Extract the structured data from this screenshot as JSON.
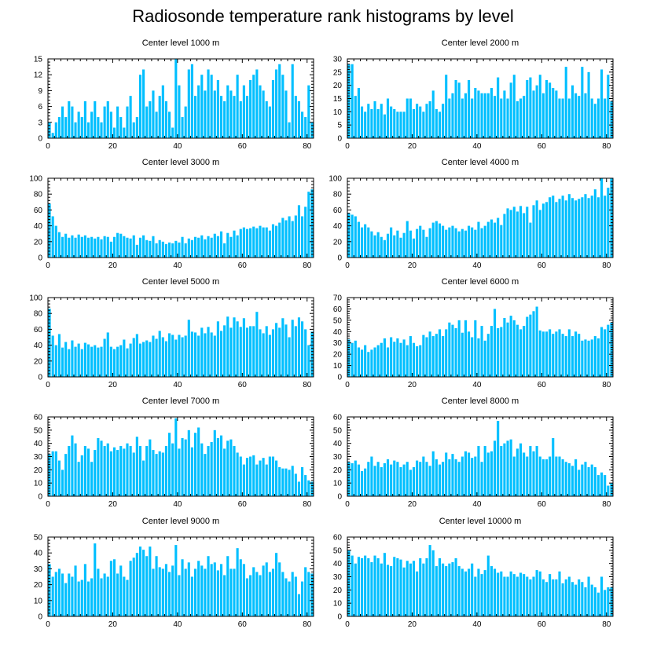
{
  "title": "Radiosonde temperature rank histograms by level",
  "colors": {
    "bar": "#00BFFF",
    "axis": "#000000",
    "background": "#FFFFFF"
  },
  "chart_data": [
    {
      "type": "bar",
      "title": "Center level 1000 m",
      "xlim": [
        0,
        82
      ],
      "ylim": [
        0,
        15
      ],
      "xticks": [
        0,
        20,
        40,
        60,
        80
      ],
      "yticks": [
        0,
        3,
        6,
        9,
        12,
        15
      ],
      "values": [
        3,
        1,
        3,
        4,
        6,
        4,
        7,
        6,
        3,
        5,
        4,
        7,
        3,
        5,
        7,
        4,
        3,
        6,
        7,
        5,
        2,
        6,
        4,
        2,
        6,
        8,
        3,
        4,
        12,
        13,
        6,
        7,
        9,
        5,
        8,
        10,
        7,
        5,
        2,
        15,
        10,
        4,
        6,
        13,
        14,
        8,
        10,
        12,
        9,
        13,
        12,
        9,
        11,
        8,
        7,
        10,
        9,
        8,
        12,
        7,
        10,
        8,
        11,
        12,
        13,
        10,
        9,
        7,
        6,
        11,
        13,
        14,
        12,
        9,
        3,
        14,
        8,
        7,
        5,
        4,
        10,
        3
      ]
    },
    {
      "type": "bar",
      "title": "Center level 2000 m",
      "xlim": [
        0,
        82
      ],
      "ylim": [
        0,
        30
      ],
      "xticks": [
        0,
        20,
        40,
        60,
        80
      ],
      "yticks": [
        0,
        5,
        10,
        15,
        20,
        25,
        30
      ],
      "values": [
        28,
        28,
        16,
        19,
        12,
        10,
        13,
        11,
        14,
        11,
        13,
        9,
        15,
        12,
        11,
        10,
        10,
        10,
        15,
        15,
        11,
        13,
        12,
        10,
        13,
        14,
        18,
        11,
        10,
        13,
        24,
        15,
        17,
        22,
        21,
        15,
        17,
        22,
        15,
        19,
        18,
        17,
        17,
        17,
        19,
        16,
        23,
        15,
        18,
        15,
        21,
        24,
        14,
        15,
        16,
        22,
        23,
        18,
        20,
        24,
        17,
        22,
        21,
        19,
        18,
        15,
        15,
        27,
        15,
        20,
        17,
        16,
        27,
        17,
        25,
        15,
        13,
        15,
        26,
        15,
        24,
        14
      ]
    },
    {
      "type": "bar",
      "title": "Center level 3000 m",
      "xlim": [
        0,
        82
      ],
      "ylim": [
        0,
        100
      ],
      "xticks": [
        0,
        20,
        40,
        60,
        80
      ],
      "yticks": [
        0,
        20,
        40,
        60,
        80,
        100
      ],
      "values": [
        68,
        52,
        40,
        32,
        26,
        30,
        25,
        28,
        25,
        29,
        26,
        28,
        25,
        26,
        24,
        26,
        23,
        27,
        26,
        20,
        26,
        31,
        30,
        27,
        25,
        24,
        28,
        16,
        25,
        28,
        22,
        21,
        27,
        18,
        22,
        20,
        17,
        19,
        18,
        21,
        19,
        26,
        18,
        24,
        22,
        26,
        25,
        28,
        23,
        27,
        25,
        30,
        27,
        33,
        18,
        31,
        26,
        34,
        28,
        36,
        38,
        36,
        37,
        39,
        37,
        40,
        38,
        38,
        34,
        42,
        40,
        44,
        50,
        47,
        52,
        46,
        53,
        66,
        52,
        64,
        83,
        86
      ]
    },
    {
      "type": "bar",
      "title": "Center level 4000 m",
      "xlim": [
        0,
        82
      ],
      "ylim": [
        0,
        100
      ],
      "xticks": [
        0,
        20,
        40,
        60,
        80
      ],
      "yticks": [
        0,
        20,
        40,
        60,
        80,
        100
      ],
      "values": [
        56,
        54,
        52,
        45,
        38,
        42,
        38,
        33,
        28,
        32,
        26,
        22,
        30,
        38,
        28,
        34,
        25,
        31,
        46,
        34,
        24,
        36,
        40,
        35,
        26,
        37,
        44,
        46,
        43,
        40,
        35,
        38,
        40,
        37,
        33,
        36,
        34,
        40,
        38,
        35,
        45,
        37,
        40,
        45,
        48,
        44,
        50,
        41,
        55,
        62,
        60,
        64,
        58,
        65,
        56,
        64,
        44,
        66,
        72,
        60,
        68,
        70,
        76,
        78,
        70,
        74,
        78,
        72,
        80,
        75,
        72,
        74,
        76,
        80,
        75,
        78,
        86,
        76,
        100,
        78,
        88,
        100
      ]
    },
    {
      "type": "bar",
      "title": "Center level 5000 m",
      "xlim": [
        0,
        82
      ],
      "ylim": [
        0,
        100
      ],
      "xticks": [
        0,
        20,
        40,
        60,
        80
      ],
      "yticks": [
        0,
        20,
        40,
        60,
        80,
        100
      ],
      "values": [
        86,
        52,
        40,
        54,
        37,
        44,
        35,
        46,
        38,
        42,
        35,
        43,
        41,
        38,
        40,
        37,
        38,
        48,
        56,
        38,
        35,
        38,
        40,
        47,
        36,
        42,
        49,
        54,
        42,
        44,
        46,
        44,
        52,
        48,
        58,
        50,
        45,
        55,
        53,
        47,
        53,
        50,
        52,
        72,
        57,
        56,
        52,
        62,
        55,
        63,
        56,
        52,
        70,
        58,
        65,
        76,
        62,
        75,
        70,
        63,
        74,
        62,
        64,
        64,
        82,
        60,
        55,
        64,
        53,
        60,
        68,
        62,
        74,
        66,
        50,
        72,
        64,
        75,
        70,
        60,
        40,
        57
      ]
    },
    {
      "type": "bar",
      "title": "Center level 6000 m",
      "xlim": [
        0,
        82
      ],
      "ylim": [
        0,
        70
      ],
      "xticks": [
        0,
        20,
        40,
        60,
        80
      ],
      "yticks": [
        0,
        10,
        20,
        30,
        40,
        50,
        60,
        70
      ],
      "values": [
        33,
        30,
        32,
        26,
        24,
        28,
        22,
        24,
        26,
        28,
        30,
        34,
        26,
        35,
        31,
        34,
        30,
        33,
        28,
        36,
        30,
        27,
        28,
        37,
        35,
        40,
        36,
        38,
        42,
        36,
        42,
        48,
        46,
        43,
        50,
        39,
        50,
        40,
        35,
        50,
        34,
        45,
        32,
        38,
        45,
        60,
        43,
        44,
        52,
        48,
        54,
        50,
        46,
        42,
        45,
        53,
        55,
        58,
        62,
        41,
        40,
        40,
        42,
        38,
        40,
        42,
        38,
        36,
        42,
        36,
        40,
        38,
        32,
        33,
        32,
        33,
        36,
        34,
        44,
        42,
        46,
        48
      ]
    },
    {
      "type": "bar",
      "title": "Center level 7000 m",
      "xlim": [
        0,
        82
      ],
      "ylim": [
        0,
        60
      ],
      "xticks": [
        0,
        20,
        40,
        60,
        80
      ],
      "yticks": [
        0,
        10,
        20,
        30,
        40,
        50,
        60
      ],
      "values": [
        32,
        34,
        34,
        27,
        20,
        32,
        38,
        46,
        40,
        26,
        31,
        38,
        36,
        26,
        35,
        44,
        42,
        38,
        40,
        34,
        37,
        35,
        38,
        36,
        40,
        38,
        33,
        45,
        38,
        27,
        38,
        43,
        35,
        32,
        34,
        33,
        38,
        48,
        40,
        59,
        36,
        44,
        43,
        50,
        37,
        48,
        52,
        40,
        32,
        38,
        41,
        50,
        44,
        46,
        36,
        42,
        43,
        38,
        33,
        30,
        24,
        29,
        30,
        31,
        24,
        27,
        29,
        24,
        30,
        30,
        27,
        22,
        21,
        21,
        20,
        23,
        17,
        11,
        22,
        16,
        12,
        11
      ]
    },
    {
      "type": "bar",
      "title": "Center level 8000 m",
      "xlim": [
        0,
        82
      ],
      "ylim": [
        0,
        60
      ],
      "xticks": [
        0,
        20,
        40,
        60,
        80
      ],
      "yticks": [
        0,
        10,
        20,
        30,
        40,
        50,
        60
      ],
      "values": [
        26,
        25,
        27,
        24,
        19,
        21,
        26,
        30,
        23,
        26,
        22,
        25,
        28,
        24,
        27,
        26,
        22,
        24,
        26,
        20,
        22,
        27,
        26,
        30,
        26,
        23,
        34,
        28,
        24,
        26,
        33,
        28,
        32,
        28,
        26,
        30,
        34,
        33,
        29,
        30,
        38,
        26,
        38,
        33,
        34,
        42,
        57,
        38,
        40,
        42,
        43,
        30,
        36,
        40,
        33,
        30,
        38,
        34,
        38,
        30,
        28,
        28,
        30,
        44,
        30,
        30,
        28,
        26,
        25,
        23,
        28,
        20,
        24,
        26,
        22,
        24,
        22,
        16,
        18,
        16,
        8,
        10
      ]
    },
    {
      "type": "bar",
      "title": "Center level 9000 m",
      "xlim": [
        0,
        82
      ],
      "ylim": [
        0,
        50
      ],
      "xticks": [
        0,
        20,
        40,
        60,
        80
      ],
      "yticks": [
        0,
        10,
        20,
        30,
        40,
        50
      ],
      "values": [
        33,
        25,
        28,
        30,
        27,
        21,
        27,
        25,
        32,
        22,
        23,
        33,
        22,
        24,
        46,
        30,
        24,
        27,
        25,
        35,
        36,
        27,
        32,
        25,
        23,
        35,
        37,
        40,
        44,
        42,
        38,
        44,
        30,
        38,
        31,
        30,
        33,
        28,
        32,
        45,
        26,
        36,
        30,
        34,
        25,
        30,
        35,
        32,
        30,
        38,
        33,
        34,
        29,
        33,
        26,
        38,
        30,
        30,
        43,
        36,
        33,
        24,
        26,
        31,
        28,
        26,
        32,
        34,
        28,
        30,
        40,
        34,
        28,
        24,
        22,
        28,
        25,
        14,
        22,
        31,
        28,
        27
      ]
    },
    {
      "type": "bar",
      "title": "Center level 10000 m",
      "xlim": [
        0,
        82
      ],
      "ylim": [
        0,
        60
      ],
      "xticks": [
        0,
        20,
        40,
        60,
        80
      ],
      "yticks": [
        0,
        10,
        20,
        30,
        40,
        50,
        60
      ],
      "values": [
        50,
        46,
        40,
        45,
        44,
        46,
        44,
        41,
        46,
        44,
        40,
        48,
        39,
        38,
        45,
        44,
        43,
        37,
        42,
        40,
        42,
        34,
        44,
        40,
        44,
        54,
        50,
        38,
        44,
        40,
        38,
        40,
        41,
        44,
        38,
        36,
        34,
        36,
        40,
        30,
        36,
        32,
        35,
        46,
        38,
        36,
        33,
        34,
        30,
        30,
        34,
        32,
        30,
        33,
        32,
        30,
        28,
        30,
        35,
        34,
        28,
        26,
        32,
        28,
        28,
        34,
        25,
        28,
        30,
        26,
        24,
        28,
        26,
        22,
        30,
        24,
        22,
        18,
        30,
        20,
        22,
        22
      ]
    }
  ]
}
